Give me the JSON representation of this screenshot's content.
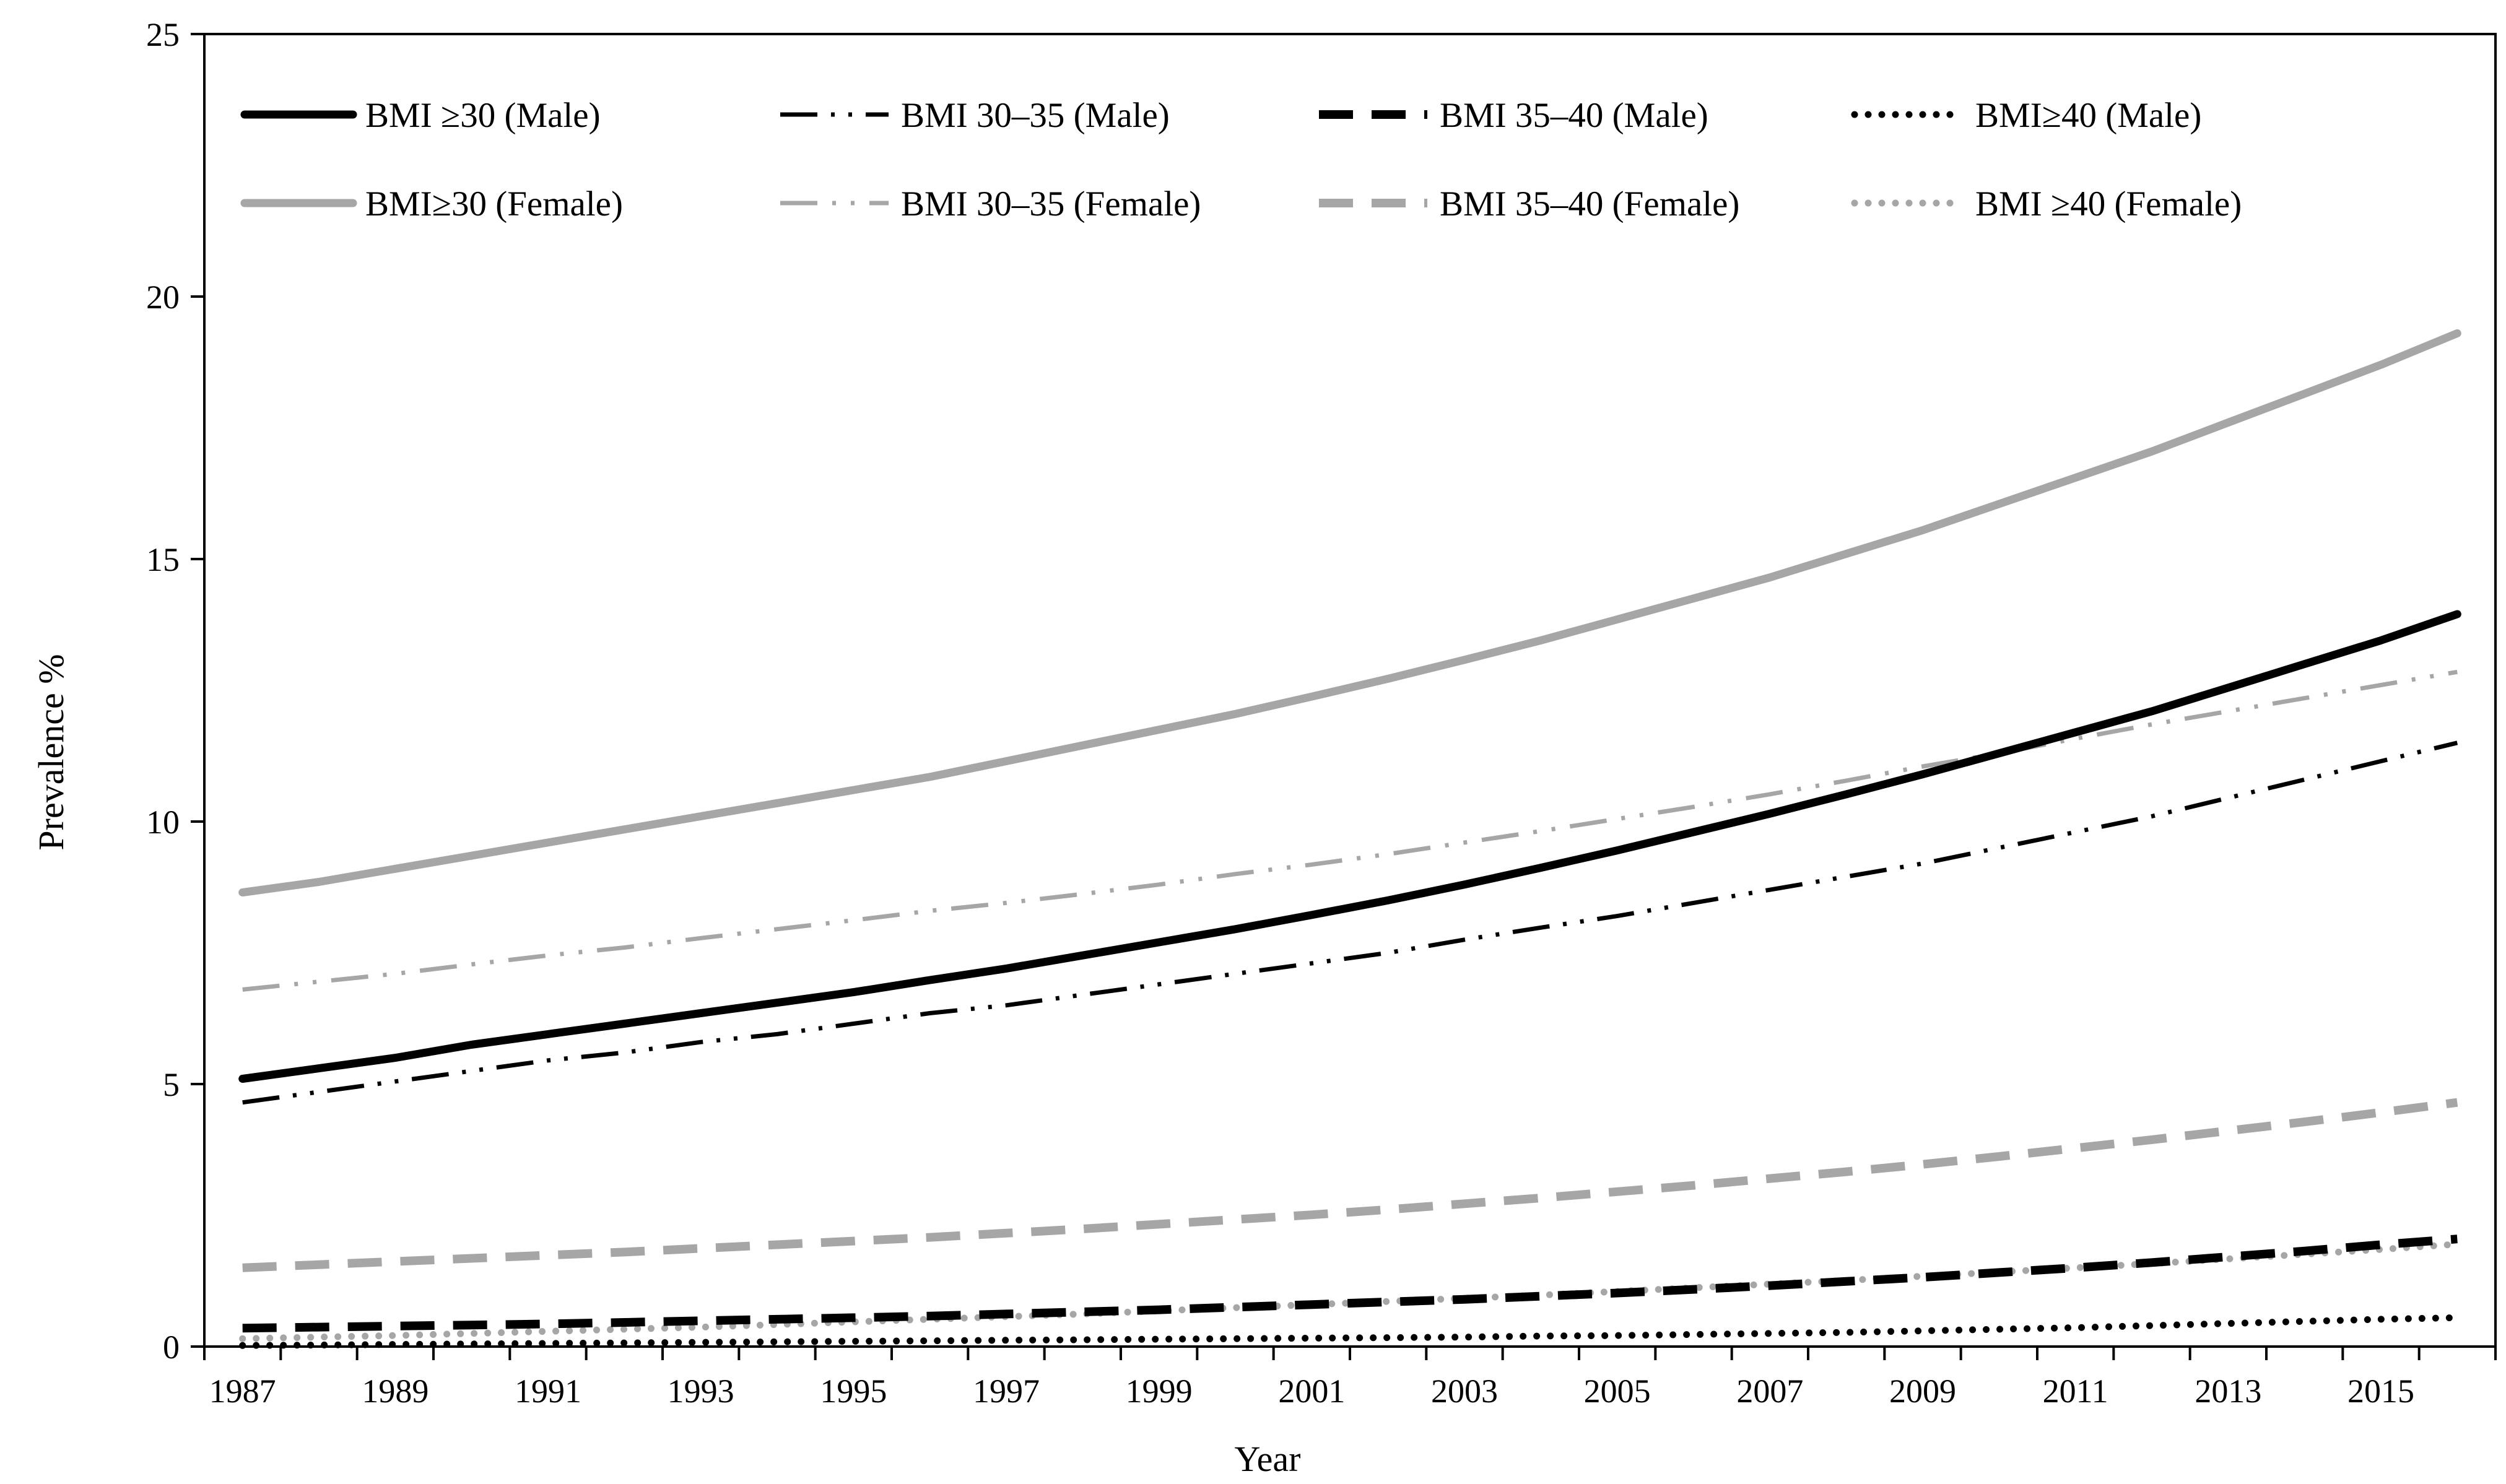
{
  "chart_data": {
    "type": "line",
    "title": "",
    "xlabel": "Year",
    "ylabel": "Prevalence %",
    "xlim": [
      1987,
      2016
    ],
    "ylim": [
      0,
      25
    ],
    "grid": false,
    "legend_position": "top",
    "x": [
      1987,
      1988,
      1989,
      1990,
      1991,
      1992,
      1993,
      1994,
      1995,
      1996,
      1997,
      1998,
      1999,
      2000,
      2001,
      2002,
      2003,
      2004,
      2005,
      2006,
      2007,
      2008,
      2009,
      2010,
      2011,
      2012,
      2013,
      2014,
      2015,
      2016
    ],
    "x_tick_labels": [
      "1987",
      "1989",
      "1991",
      "1993",
      "1995",
      "1997",
      "1999",
      "2001",
      "2003",
      "2005",
      "2007",
      "2009",
      "2011",
      "2013",
      "2015"
    ],
    "y_ticks": [
      0,
      5,
      10,
      15,
      20,
      25
    ],
    "y_tick_labels": [
      "0",
      "5",
      "10",
      "15",
      "20",
      "25"
    ],
    "series": [
      {
        "name": "BMI ≥30 (Male)",
        "color": "#000000",
        "style": "solid",
        "values": [
          5.1,
          5.3,
          5.5,
          5.75,
          5.95,
          6.15,
          6.35,
          6.55,
          6.75,
          6.98,
          7.2,
          7.45,
          7.7,
          7.95,
          8.22,
          8.5,
          8.8,
          9.12,
          9.45,
          9.8,
          10.15,
          10.52,
          10.9,
          11.3,
          11.7,
          12.1,
          12.55,
          13.0,
          13.45,
          13.95
        ]
      },
      {
        "name": "BMI 30–35 (Male)",
        "color": "#000000",
        "style": "dashdotdot",
        "values": [
          4.65,
          4.85,
          5.05,
          5.25,
          5.45,
          5.6,
          5.8,
          5.95,
          6.15,
          6.35,
          6.5,
          6.7,
          6.9,
          7.1,
          7.3,
          7.5,
          7.75,
          7.98,
          8.2,
          8.45,
          8.7,
          8.95,
          9.2,
          9.5,
          9.8,
          10.1,
          10.45,
          10.8,
          11.15,
          11.5
        ]
      },
      {
        "name": "BMI 35–40 (Male)",
        "color": "#000000",
        "style": "dash",
        "values": [
          0.35,
          0.37,
          0.39,
          0.41,
          0.43,
          0.46,
          0.49,
          0.52,
          0.55,
          0.58,
          0.62,
          0.66,
          0.7,
          0.75,
          0.8,
          0.85,
          0.9,
          0.96,
          1.02,
          1.09,
          1.16,
          1.24,
          1.32,
          1.41,
          1.5,
          1.6,
          1.71,
          1.82,
          1.94,
          2.05
        ]
      },
      {
        "name": "BMI≥40 (Male)",
        "color": "#000000",
        "style": "dot",
        "values": [
          0.02,
          0.03,
          0.04,
          0.05,
          0.06,
          0.07,
          0.08,
          0.09,
          0.1,
          0.11,
          0.12,
          0.13,
          0.14,
          0.15,
          0.16,
          0.17,
          0.18,
          0.2,
          0.21,
          0.23,
          0.25,
          0.27,
          0.3,
          0.33,
          0.36,
          0.4,
          0.44,
          0.48,
          0.52,
          0.55
        ]
      },
      {
        "name": "BMI≥30 (Female)",
        "color": "#a6a6a6",
        "style": "solid",
        "values": [
          8.65,
          8.85,
          9.1,
          9.35,
          9.6,
          9.85,
          10.1,
          10.35,
          10.6,
          10.85,
          11.15,
          11.45,
          11.75,
          12.05,
          12.38,
          12.72,
          13.08,
          13.45,
          13.85,
          14.25,
          14.65,
          15.1,
          15.55,
          16.05,
          16.55,
          17.05,
          17.6,
          18.15,
          18.7,
          19.3
        ]
      },
      {
        "name": "BMI 30–35 (Female)",
        "color": "#a6a6a6",
        "style": "dashdotdot",
        "values": [
          6.8,
          6.95,
          7.1,
          7.28,
          7.45,
          7.6,
          7.78,
          7.95,
          8.12,
          8.3,
          8.45,
          8.62,
          8.8,
          9.0,
          9.18,
          9.38,
          9.6,
          9.82,
          10.05,
          10.28,
          10.52,
          10.78,
          11.05,
          11.3,
          11.58,
          11.85,
          12.1,
          12.35,
          12.6,
          12.85
        ]
      },
      {
        "name": "BMI 35–40 (Female)",
        "color": "#a6a6a6",
        "style": "dash",
        "values": [
          1.5,
          1.56,
          1.62,
          1.68,
          1.74,
          1.8,
          1.87,
          1.94,
          2.01,
          2.08,
          2.16,
          2.24,
          2.33,
          2.42,
          2.51,
          2.61,
          2.72,
          2.83,
          2.95,
          3.07,
          3.2,
          3.33,
          3.47,
          3.62,
          3.78,
          3.94,
          4.11,
          4.28,
          4.46,
          4.65
        ]
      },
      {
        "name": "BMI ≥40 (Female)",
        "color": "#a6a6a6",
        "style": "dot",
        "values": [
          0.15,
          0.18,
          0.21,
          0.25,
          0.29,
          0.33,
          0.37,
          0.42,
          0.47,
          0.52,
          0.57,
          0.62,
          0.68,
          0.74,
          0.8,
          0.86,
          0.92,
          0.98,
          1.05,
          1.12,
          1.19,
          1.26,
          1.34,
          1.42,
          1.5,
          1.58,
          1.67,
          1.76,
          1.85,
          1.95
        ]
      }
    ]
  }
}
